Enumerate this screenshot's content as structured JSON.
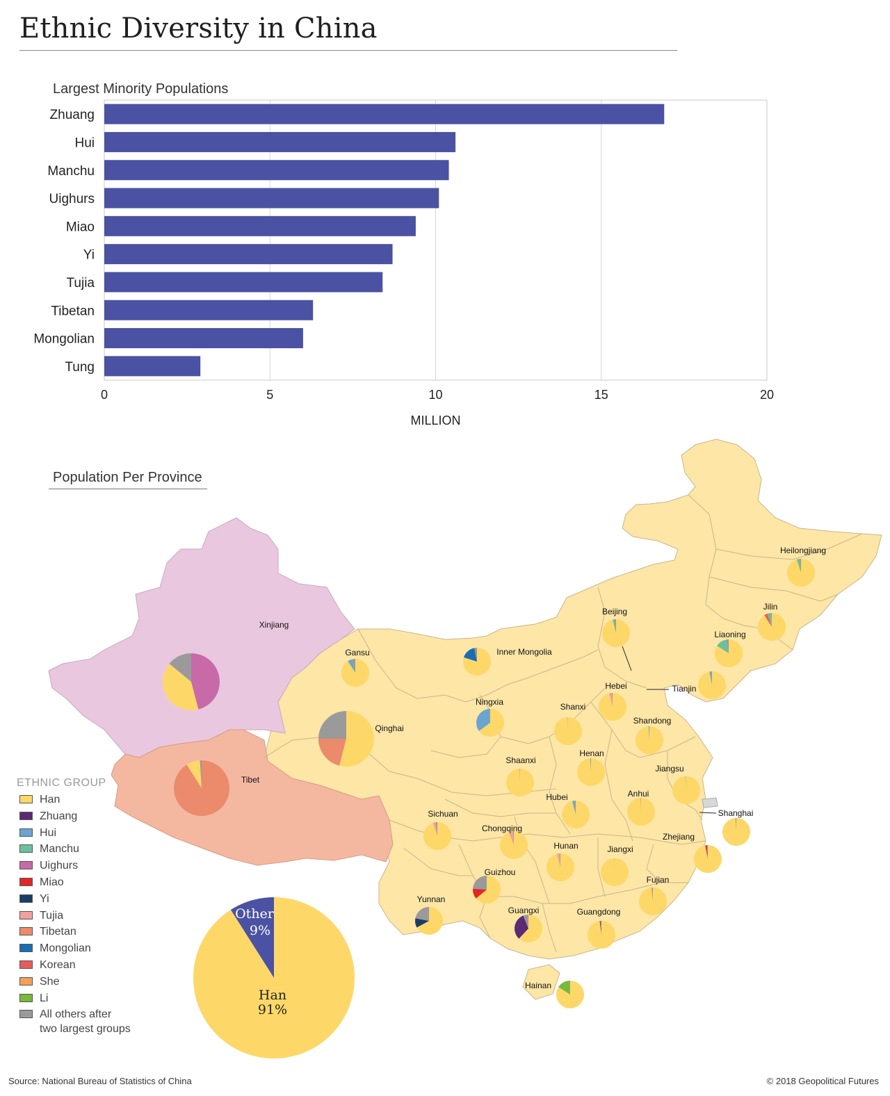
{
  "title": "Ethnic Diversity in China",
  "bar_section_title": "Largest Minority Populations",
  "map_section_title": "Population Per Province",
  "colors": {
    "bar": "#4b52a3",
    "han": "#fdd868",
    "province_fill": "#fde6a6",
    "xinjiang_fill": "#e9c8df",
    "tibet_fill": "#f4b8a1",
    "other_slice": "#4b52a3"
  },
  "chart_data": [
    {
      "type": "bar",
      "orientation": "horizontal",
      "title": "Largest Minority Populations",
      "categories": [
        "Zhuang",
        "Hui",
        "Manchu",
        "Uighurs",
        "Miao",
        "Yi",
        "Tujia",
        "Tibetan",
        "Mongolian",
        "Tung"
      ],
      "values": [
        16.9,
        10.6,
        10.4,
        10.1,
        9.4,
        8.7,
        8.4,
        6.3,
        6.0,
        2.9
      ],
      "xlabel": "MILLION",
      "xlim": [
        0,
        20
      ],
      "xticks": [
        0,
        5,
        10,
        15,
        20
      ],
      "grid": true
    },
    {
      "type": "pie",
      "labels": [
        "Han",
        "Other"
      ],
      "values": [
        91,
        9
      ],
      "value_labels": [
        "91%",
        "9%"
      ]
    }
  ],
  "legend": {
    "title": "ETHNIC GROUP",
    "items": [
      {
        "label": "Han",
        "color": "#fdd868"
      },
      {
        "label": "Zhuang",
        "color": "#5b2a72"
      },
      {
        "label": "Hui",
        "color": "#6ba4cf"
      },
      {
        "label": "Manchu",
        "color": "#6cc0a0"
      },
      {
        "label": "Uighurs",
        "color": "#c86aa8"
      },
      {
        "label": "Miao",
        "color": "#e02828"
      },
      {
        "label": "Yi",
        "color": "#1a3d66"
      },
      {
        "label": "Tujia",
        "color": "#f2a0a0"
      },
      {
        "label": "Tibetan",
        "color": "#ec8a6c"
      },
      {
        "label": "Mongolian",
        "color": "#1b6db3"
      },
      {
        "label": "Korean",
        "color": "#ec5a5a"
      },
      {
        "label": "She",
        "color": "#f4a05a"
      },
      {
        "label": "Li",
        "color": "#79b83a"
      },
      {
        "label": "All others after two largest groups",
        "line1": "All others after",
        "line2": "two largest groups",
        "color": "#9a9a9a"
      }
    ]
  },
  "provinces": [
    {
      "name": "Xinjiang",
      "slices": [
        [
          "Uighurs",
          0.46
        ],
        [
          "Han",
          0.4
        ],
        [
          "All others after two largest groups",
          0.14
        ]
      ]
    },
    {
      "name": "Tibet",
      "slices": [
        [
          "Tibetan",
          0.91
        ],
        [
          "Han",
          0.08
        ],
        [
          "All others after two largest groups",
          0.01
        ]
      ]
    },
    {
      "name": "Qinghai",
      "slices": [
        [
          "Han",
          0.54
        ],
        [
          "Tibetan",
          0.21
        ],
        [
          "All others after two largest groups",
          0.25
        ]
      ]
    },
    {
      "name": "Gansu",
      "slices": [
        [
          "Han",
          0.91
        ],
        [
          "Hui",
          0.05
        ],
        [
          "All others after two largest groups",
          0.04
        ]
      ]
    },
    {
      "name": "Inner Mongolia",
      "slices": [
        [
          "Han",
          0.8
        ],
        [
          "Mongolian",
          0.17
        ],
        [
          "All others after two largest groups",
          0.03
        ]
      ]
    },
    {
      "name": "Ningxia",
      "slices": [
        [
          "Han",
          0.65
        ],
        [
          "Hui",
          0.34
        ],
        [
          "All others after two largest groups",
          0.01
        ]
      ]
    },
    {
      "name": "Heilongjiang",
      "slices": [
        [
          "Han",
          0.95
        ],
        [
          "Manchu",
          0.03
        ],
        [
          "All others after two largest groups",
          0.02
        ]
      ]
    },
    {
      "name": "Jilin",
      "slices": [
        [
          "Han",
          0.91
        ],
        [
          "Korean",
          0.04
        ],
        [
          "Manchu",
          0.04
        ],
        [
          "All others after two largest groups",
          0.01
        ]
      ]
    },
    {
      "name": "Liaoning",
      "slices": [
        [
          "Han",
          0.84
        ],
        [
          "Manchu",
          0.13
        ],
        [
          "All others after two largest groups",
          0.03
        ]
      ]
    },
    {
      "name": "Beijing",
      "slices": [
        [
          "Han",
          0.96
        ],
        [
          "Manchu",
          0.02
        ],
        [
          "All others after two largest groups",
          0.02
        ]
      ]
    },
    {
      "name": "Tianjin",
      "slices": [
        [
          "Han",
          0.97
        ],
        [
          "Hui",
          0.02
        ],
        [
          "All others after two largest groups",
          0.01
        ]
      ]
    },
    {
      "name": "Hebei",
      "slices": [
        [
          "Han",
          0.96
        ],
        [
          "Tujia",
          0.03
        ],
        [
          "All others after two largest groups",
          0.01
        ]
      ]
    },
    {
      "name": "Shanxi",
      "slices": [
        [
          "Han",
          0.997
        ],
        [
          "All others after two largest groups",
          0.003
        ]
      ]
    },
    {
      "name": "Shandong",
      "slices": [
        [
          "Han",
          0.99
        ],
        [
          "Hui",
          0.01
        ]
      ]
    },
    {
      "name": "Henan",
      "slices": [
        [
          "Han",
          0.99
        ],
        [
          "Hui",
          0.01
        ]
      ]
    },
    {
      "name": "Shaanxi",
      "slices": [
        [
          "Han",
          0.995
        ],
        [
          "All others after two largest groups",
          0.005
        ]
      ]
    },
    {
      "name": "Jiangsu",
      "slices": [
        [
          "Han",
          0.996
        ],
        [
          "All others after two largest groups",
          0.004
        ]
      ]
    },
    {
      "name": "Anhui",
      "slices": [
        [
          "Han",
          0.995
        ],
        [
          "All others after two largest groups",
          0.005
        ]
      ]
    },
    {
      "name": "Shanghai",
      "slices": [
        [
          "Han",
          0.99
        ],
        [
          "All others after two largest groups",
          0.01
        ]
      ]
    },
    {
      "name": "Hubei",
      "slices": [
        [
          "Han",
          0.96
        ],
        [
          "Hui",
          0.03
        ],
        [
          "All others after two largest groups",
          0.01
        ]
      ]
    },
    {
      "name": "Sichuan",
      "slices": [
        [
          "Han",
          0.95
        ],
        [
          "Tujia",
          0.03
        ],
        [
          "All others after two largest groups",
          0.02
        ]
      ]
    },
    {
      "name": "Chongqing",
      "slices": [
        [
          "Han",
          0.94
        ],
        [
          "Tujia",
          0.05
        ],
        [
          "All others after two largest groups",
          0.01
        ]
      ]
    },
    {
      "name": "Hunan",
      "slices": [
        [
          "Han",
          0.96
        ],
        [
          "Tujia",
          0.03
        ],
        [
          "All others after two largest groups",
          0.01
        ]
      ]
    },
    {
      "name": "Jiangxi",
      "slices": [
        [
          "Han",
          0.998
        ],
        [
          "All others after two largest groups",
          0.002
        ]
      ]
    },
    {
      "name": "Zhejiang",
      "slices": [
        [
          "Han",
          0.97
        ],
        [
          "Miao",
          0.02
        ],
        [
          "All others after two largest groups",
          0.01
        ]
      ]
    },
    {
      "name": "Fujian",
      "slices": [
        [
          "Han",
          0.98
        ],
        [
          "She",
          0.01
        ],
        [
          "All others after two largest groups",
          0.01
        ]
      ]
    },
    {
      "name": "Guizhou",
      "slices": [
        [
          "Han",
          0.64
        ],
        [
          "Miao",
          0.12
        ],
        [
          "All others after two largest groups",
          0.24
        ]
      ]
    },
    {
      "name": "Yunnan",
      "slices": [
        [
          "Han",
          0.67
        ],
        [
          "Yi",
          0.11
        ],
        [
          "All others after two largest groups",
          0.22
        ]
      ]
    },
    {
      "name": "Guangxi",
      "slices": [
        [
          "Han",
          0.62
        ],
        [
          "Zhuang",
          0.32
        ],
        [
          "All others after two largest groups",
          0.06
        ]
      ]
    },
    {
      "name": "Guangdong",
      "slices": [
        [
          "Han",
          0.98
        ],
        [
          "Zhuang",
          0.01
        ],
        [
          "All others after two largest groups",
          0.01
        ]
      ]
    },
    {
      "name": "Hainan",
      "slices": [
        [
          "Han",
          0.84
        ],
        [
          "Li",
          0.15
        ],
        [
          "All others after two largest groups",
          0.01
        ]
      ]
    }
  ],
  "footer": {
    "source": "Source: National Bureau of Statistics of China",
    "copyright": "© 2018 Geopolitical Futures"
  }
}
